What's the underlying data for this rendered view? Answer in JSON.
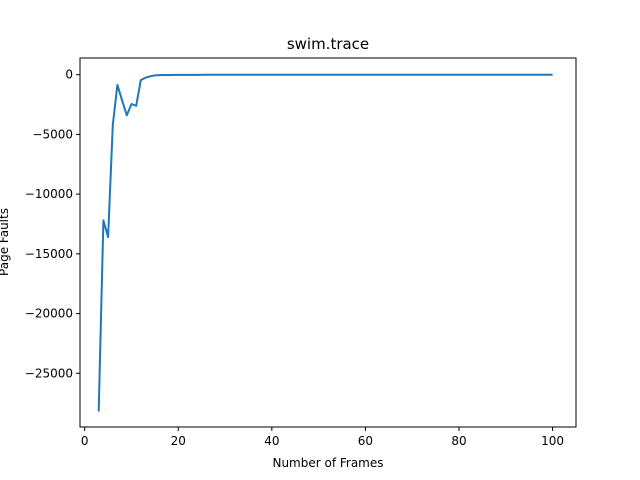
{
  "chart_data": {
    "type": "line",
    "title": "swim.trace",
    "xlabel": "Number of Frames",
    "ylabel": "Page Faults",
    "xlim": [
      -1,
      105
    ],
    "ylim": [
      -29500,
      1400
    ],
    "xticks": [
      0,
      20,
      40,
      60,
      80,
      100
    ],
    "yticks": [
      -25000,
      -20000,
      -15000,
      -10000,
      -5000,
      0
    ],
    "grid": false,
    "line_color": "#1f77b4",
    "series": [
      {
        "x": [
          3,
          4,
          5,
          6,
          7,
          8,
          9,
          10,
          11,
          12,
          13,
          14,
          15,
          16,
          17,
          18,
          20,
          22,
          24,
          26,
          28,
          30,
          35,
          40,
          50,
          60,
          70,
          80,
          90,
          100
        ],
        "y": [
          -28200,
          -12200,
          -13600,
          -4200,
          -850,
          -2150,
          -3400,
          -2450,
          -2600,
          -450,
          -250,
          -130,
          -60,
          -30,
          -25,
          -20,
          -15,
          -15,
          -15,
          -10,
          -10,
          -8,
          -6,
          -5,
          -4,
          -3,
          -3,
          -2,
          -2,
          -1
        ]
      }
    ]
  }
}
